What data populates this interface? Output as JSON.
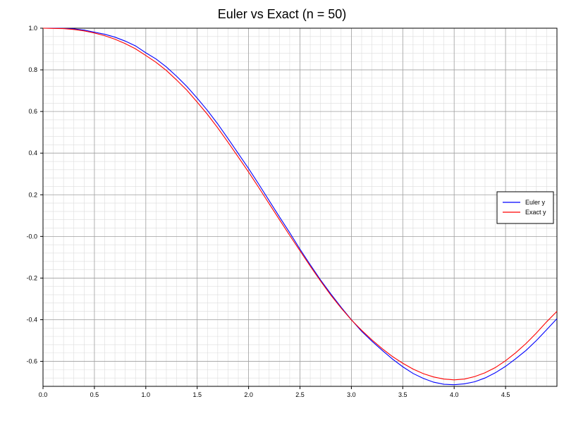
{
  "chart_data": {
    "type": "line",
    "title": "Euler vs Exact (n = 50)",
    "xlabel": "",
    "ylabel": "",
    "xlim": [
      0,
      5
    ],
    "ylim": [
      -0.72,
      1.0
    ],
    "x_ticks": [
      "0.0",
      "0.5",
      "1.0",
      "1.5",
      "2.0",
      "2.5",
      "3.0",
      "3.5",
      "4.0",
      "4.5"
    ],
    "x_tick_values": [
      0,
      0.5,
      1.0,
      1.5,
      2.0,
      2.5,
      3.0,
      3.5,
      4.0,
      4.5
    ],
    "y_ticks": [
      "1.0",
      "0.8",
      "0.6",
      "0.4",
      "0.2",
      "-0.0",
      "-0.2",
      "-0.4",
      "-0.6"
    ],
    "y_tick_values": [
      1.0,
      0.8,
      0.6,
      0.4,
      0.2,
      0.0,
      -0.2,
      -0.4,
      -0.6
    ],
    "grid": true,
    "legend_position": "right",
    "series": [
      {
        "name": "Euler y",
        "color": "#0000ff",
        "x": [
          0,
          0.1,
          0.2,
          0.3,
          0.4,
          0.5,
          0.6,
          0.7,
          0.8,
          0.9,
          1.0,
          1.1,
          1.2,
          1.3,
          1.4,
          1.5,
          1.6,
          1.7,
          1.8,
          1.9,
          2.0,
          2.1,
          2.2,
          2.3,
          2.4,
          2.5,
          2.6,
          2.7,
          2.8,
          2.9,
          3.0,
          3.1,
          3.2,
          3.3,
          3.4,
          3.5,
          3.6,
          3.7,
          3.8,
          3.9,
          4.0,
          4.1,
          4.2,
          4.3,
          4.4,
          4.5,
          4.6,
          4.7,
          4.8,
          4.9,
          5.0
        ],
        "y": [
          1.0,
          1.0,
          0.999,
          0.997,
          0.991,
          0.981,
          0.971,
          0.957,
          0.938,
          0.915,
          0.882,
          0.852,
          0.814,
          0.769,
          0.72,
          0.664,
          0.605,
          0.54,
          0.47,
          0.398,
          0.326,
          0.25,
          0.172,
          0.094,
          0.018,
          -0.061,
          -0.136,
          -0.209,
          -0.276,
          -0.34,
          -0.4,
          -0.456,
          -0.503,
          -0.547,
          -0.589,
          -0.626,
          -0.658,
          -0.682,
          -0.7,
          -0.71,
          -0.712,
          -0.708,
          -0.698,
          -0.68,
          -0.655,
          -0.624,
          -0.587,
          -0.547,
          -0.5,
          -0.448,
          -0.395
        ]
      },
      {
        "name": "Exact y",
        "color": "#ff0000",
        "x": [
          0,
          0.1,
          0.2,
          0.3,
          0.4,
          0.5,
          0.6,
          0.7,
          0.8,
          0.9,
          1.0,
          1.1,
          1.2,
          1.3,
          1.4,
          1.5,
          1.6,
          1.7,
          1.8,
          1.9,
          2.0,
          2.1,
          2.2,
          2.3,
          2.4,
          2.5,
          2.6,
          2.7,
          2.8,
          2.9,
          3.0,
          3.1,
          3.2,
          3.3,
          3.4,
          3.5,
          3.6,
          3.7,
          3.8,
          3.9,
          4.0,
          4.1,
          4.2,
          4.3,
          4.4,
          4.5,
          4.6,
          4.7,
          4.8,
          4.9,
          5.0
        ],
        "y": [
          1.0,
          0.999,
          0.998,
          0.994,
          0.987,
          0.977,
          0.964,
          0.947,
          0.926,
          0.901,
          0.869,
          0.836,
          0.797,
          0.751,
          0.702,
          0.645,
          0.586,
          0.521,
          0.452,
          0.381,
          0.309,
          0.234,
          0.157,
          0.081,
          0.005,
          -0.069,
          -0.143,
          -0.214,
          -0.282,
          -0.344,
          -0.401,
          -0.451,
          -0.497,
          -0.539,
          -0.577,
          -0.609,
          -0.637,
          -0.659,
          -0.675,
          -0.685,
          -0.689,
          -0.685,
          -0.673,
          -0.655,
          -0.63,
          -0.597,
          -0.558,
          -0.514,
          -0.464,
          -0.41,
          -0.36
        ]
      }
    ]
  }
}
